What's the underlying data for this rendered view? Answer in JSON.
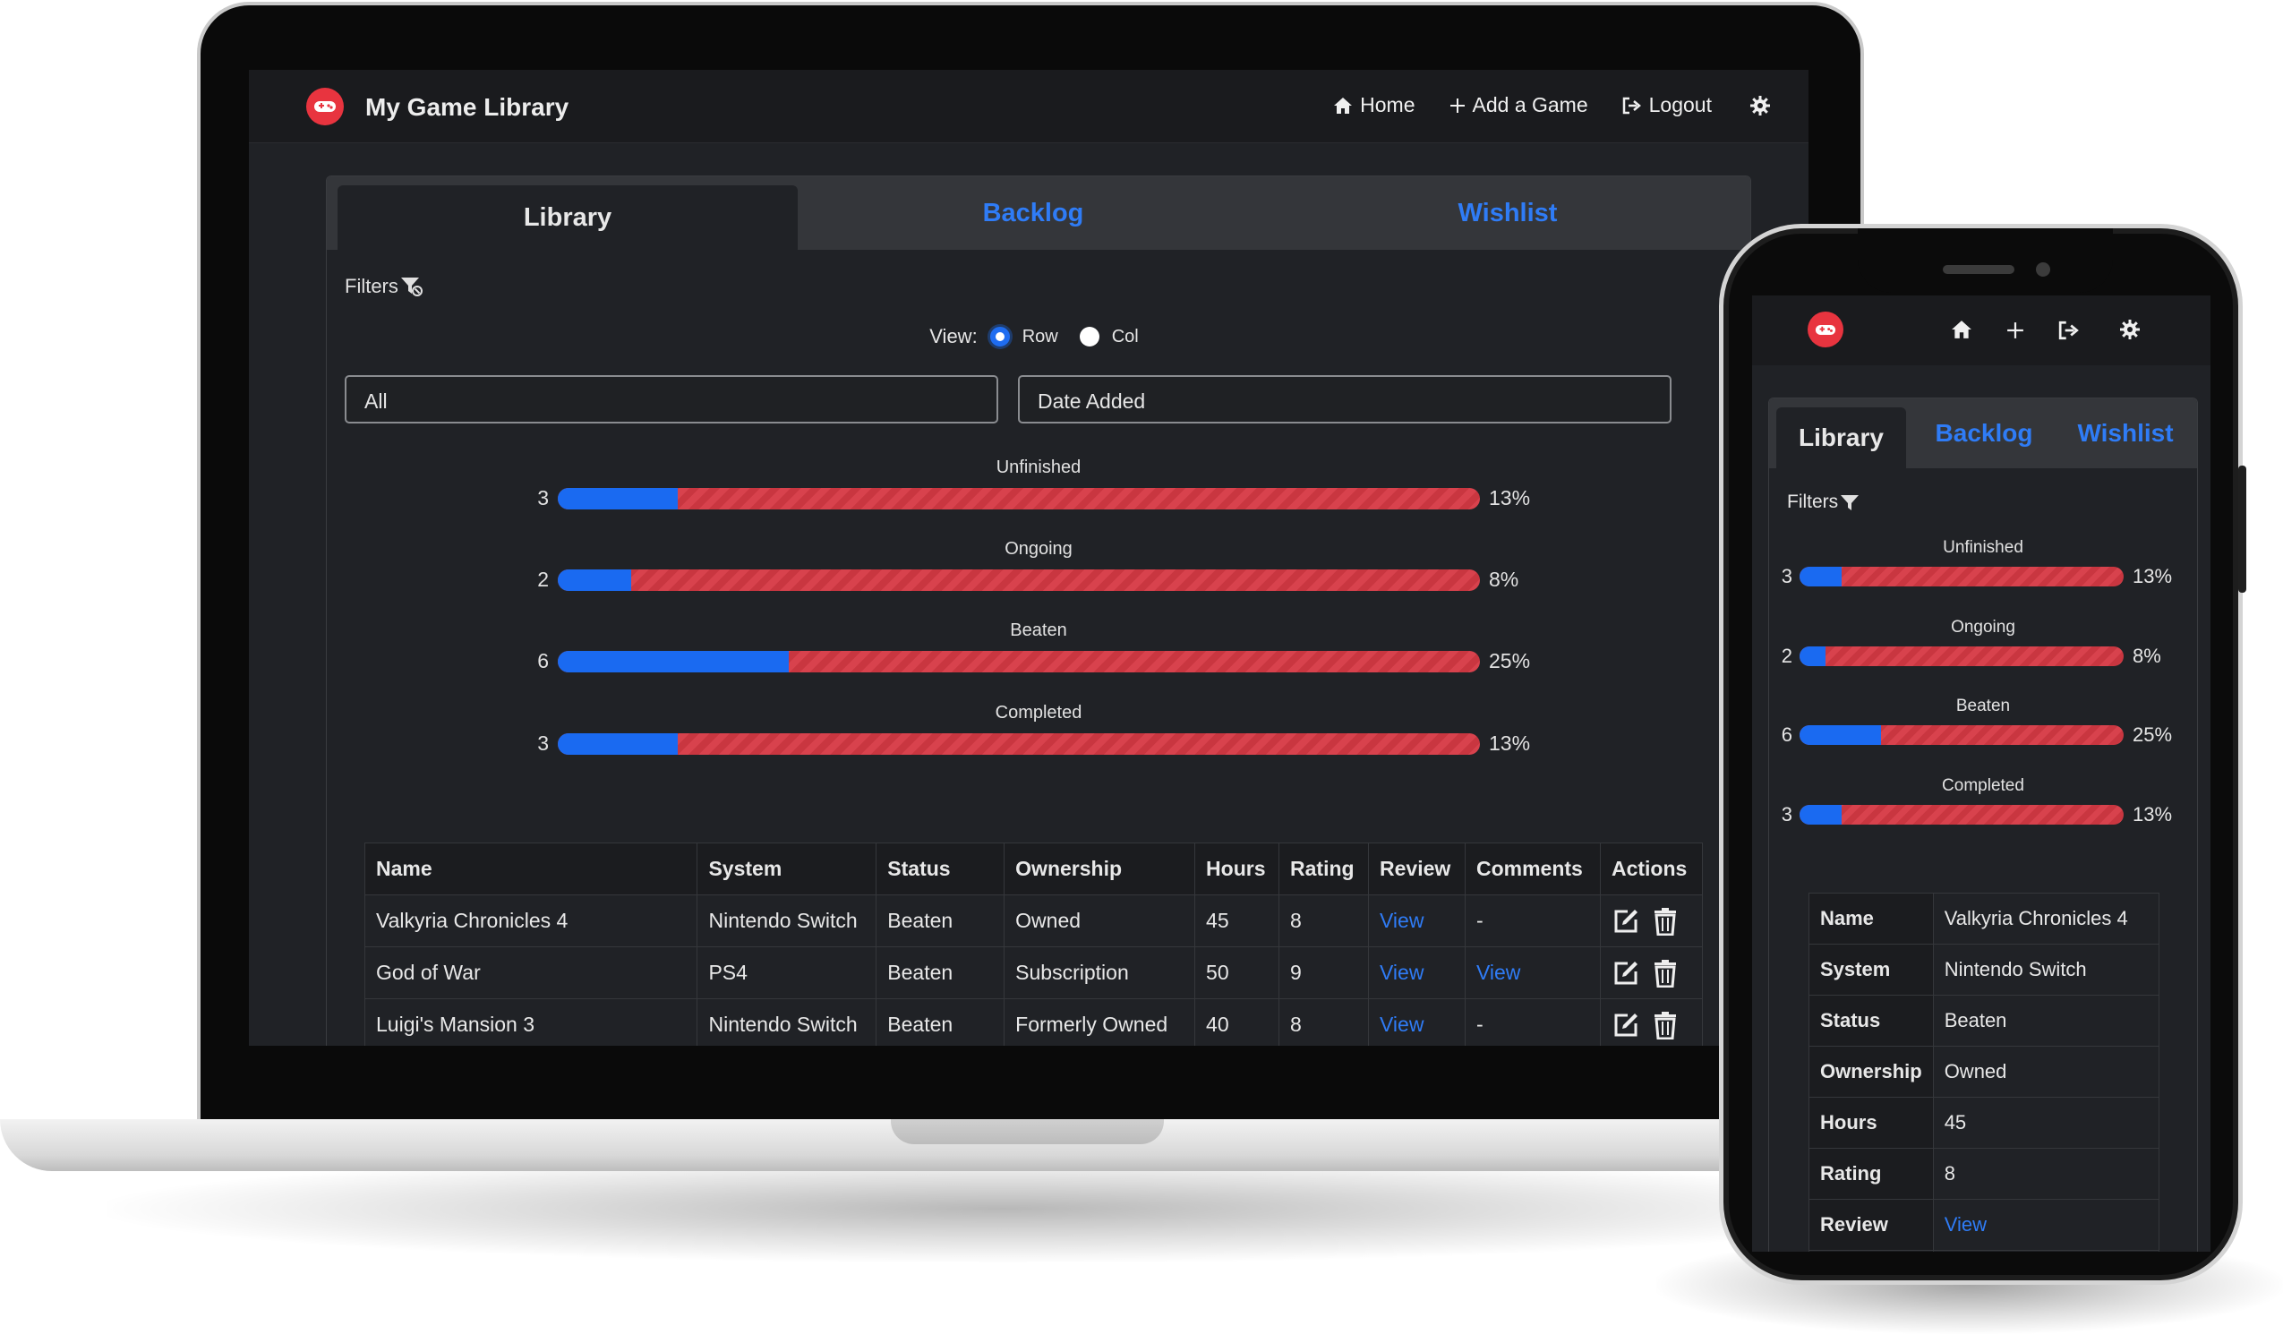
{
  "laptop": {
    "nav": {
      "brand_title": "My Game Library",
      "home": "Home",
      "add_game": "Add a Game",
      "logout": "Logout"
    },
    "tabs": [
      "Library",
      "Backlog",
      "Wishlist"
    ],
    "filters_label": "Filters",
    "view": {
      "label": "View:",
      "options": [
        "Row",
        "Col"
      ],
      "selected": "Row"
    },
    "filter_select": "All",
    "sort_select": "Date Added",
    "stats": [
      {
        "label": "Unfinished",
        "count": "3",
        "percent": "13%",
        "fraction": 0.13
      },
      {
        "label": "Ongoing",
        "count": "2",
        "percent": "8%",
        "fraction": 0.08
      },
      {
        "label": "Beaten",
        "count": "6",
        "percent": "25%",
        "fraction": 0.25
      },
      {
        "label": "Completed",
        "count": "3",
        "percent": "13%",
        "fraction": 0.13
      }
    ],
    "table": {
      "headers": [
        "Name",
        "System",
        "Status",
        "Ownership",
        "Hours",
        "Rating",
        "Review",
        "Comments",
        "Actions"
      ],
      "rows": [
        {
          "name": "Valkyria Chronicles 4",
          "system": "Nintendo Switch",
          "status": "Beaten",
          "ownership": "Owned",
          "hours": "45",
          "rating": "8",
          "review": "View",
          "comments": "-"
        },
        {
          "name": "God of War",
          "system": "PS4",
          "status": "Beaten",
          "ownership": "Subscription",
          "hours": "50",
          "rating": "9",
          "review": "View",
          "comments": "View"
        },
        {
          "name": "Luigi's Mansion 3",
          "system": "Nintendo Switch",
          "status": "Beaten",
          "ownership": "Formerly Owned",
          "hours": "40",
          "rating": "8",
          "review": "View",
          "comments": "-"
        }
      ]
    }
  },
  "phone": {
    "tabs": [
      "Library",
      "Backlog",
      "Wishlist"
    ],
    "filters_label": "Filters",
    "stats": [
      {
        "label": "Unfinished",
        "count": "3",
        "percent": "13%",
        "fraction": 0.13
      },
      {
        "label": "Ongoing",
        "count": "2",
        "percent": "8%",
        "fraction": 0.08
      },
      {
        "label": "Beaten",
        "count": "6",
        "percent": "25%",
        "fraction": 0.25
      },
      {
        "label": "Completed",
        "count": "3",
        "percent": "13%",
        "fraction": 0.13
      }
    ],
    "detail": [
      {
        "key": "Name",
        "value": "Valkyria Chronicles 4"
      },
      {
        "key": "System",
        "value": "Nintendo Switch"
      },
      {
        "key": "Status",
        "value": "Beaten"
      },
      {
        "key": "Ownership",
        "value": "Owned"
      },
      {
        "key": "Hours",
        "value": "45"
      },
      {
        "key": "Rating",
        "value": "8"
      },
      {
        "key": "Review",
        "value": "View"
      }
    ]
  },
  "colors": {
    "accent_blue": "#2f7cf6",
    "bar_fill_blue": "#1a6af1",
    "bar_red": "#d8424d",
    "logo_red": "#e8343f",
    "background_dark": "#202226"
  },
  "icons": [
    "gamepad-icon",
    "home-icon",
    "plus-icon",
    "logout-icon",
    "gear-icon",
    "filter-icon",
    "sort-icon",
    "edit-icon",
    "trash-icon"
  ]
}
